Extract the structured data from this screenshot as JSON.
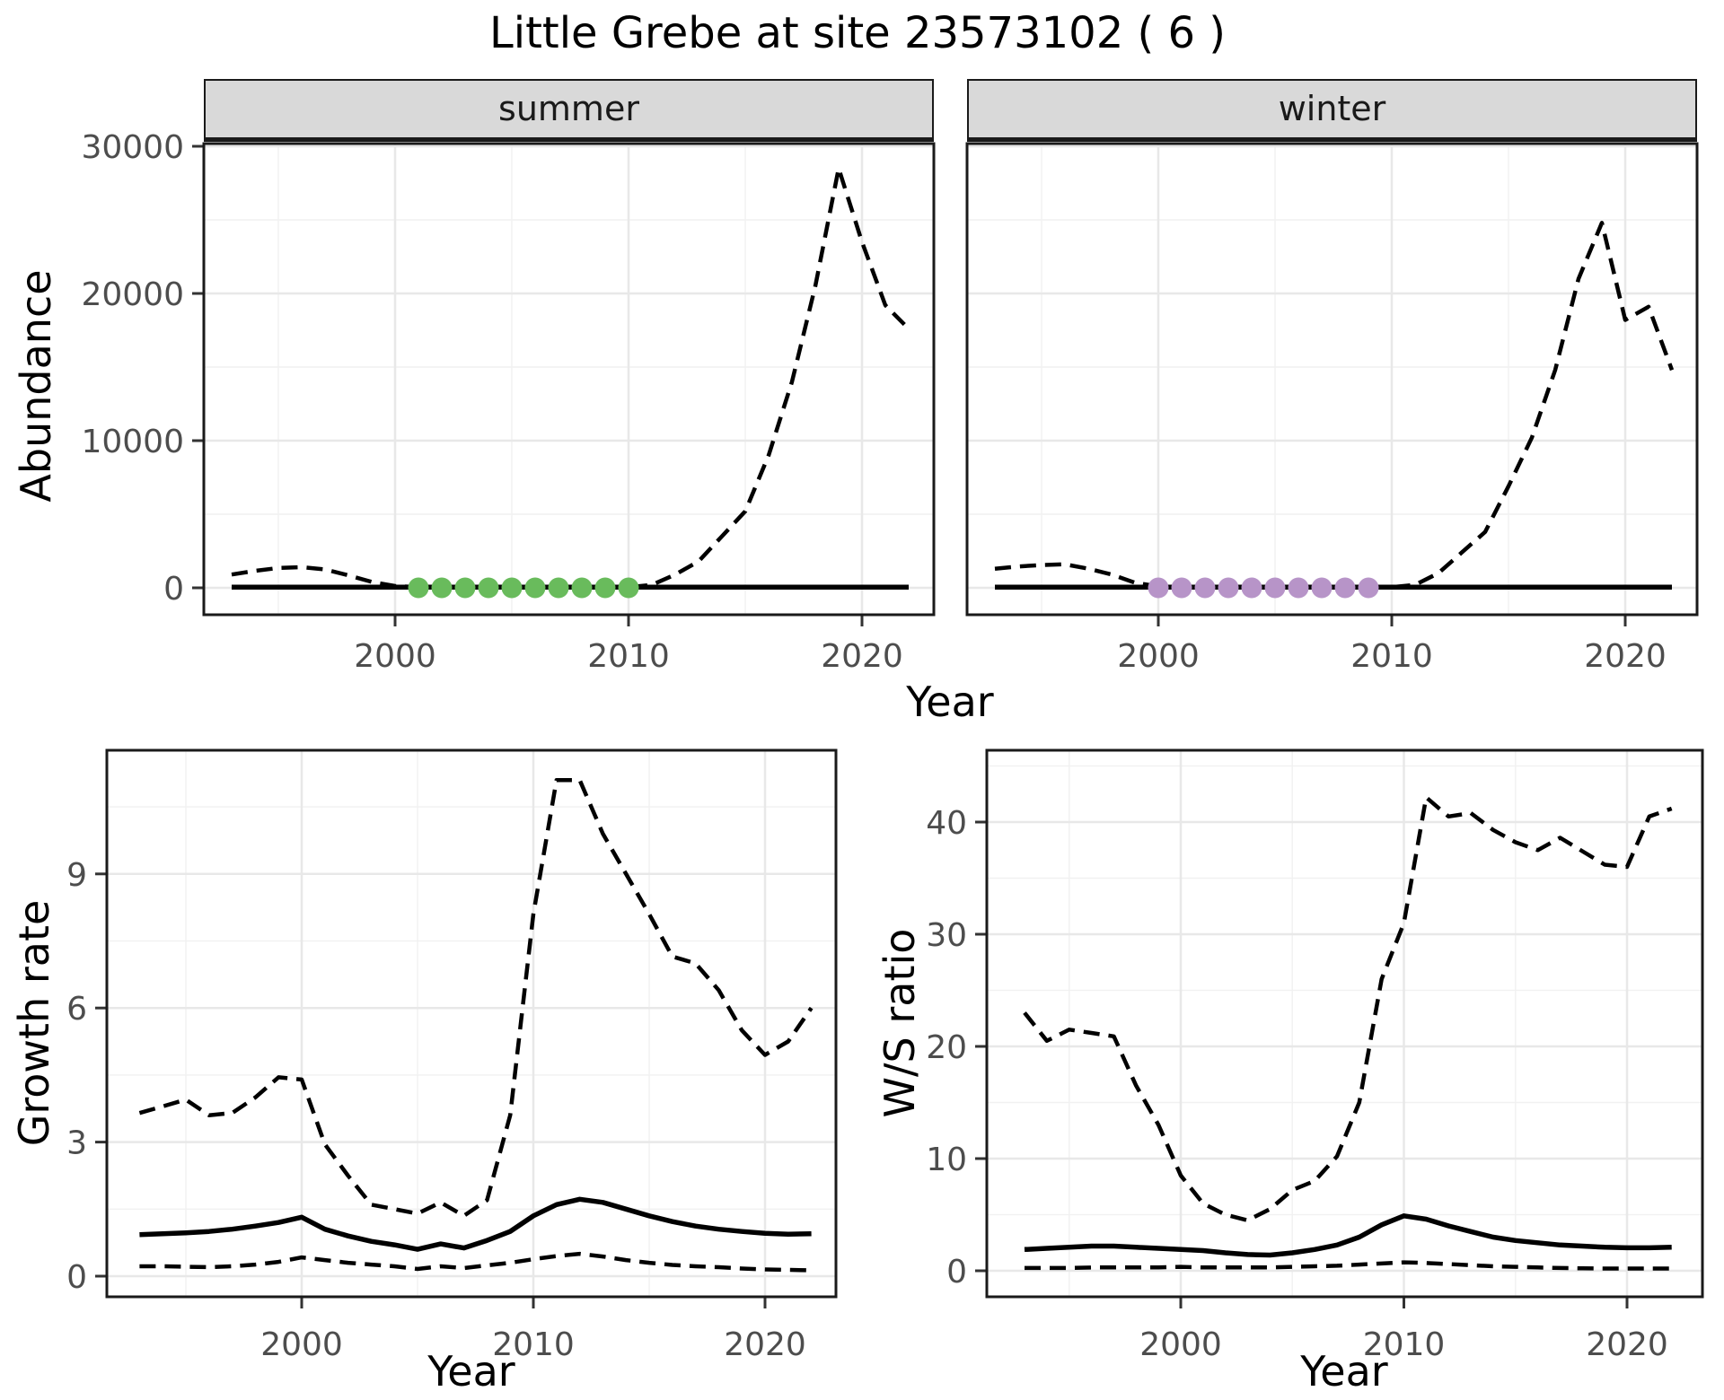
{
  "title": "Little Grebe at site 23573102 ( 6 )",
  "labels": {
    "y_top": "Abundance",
    "x": "Year",
    "facet_summer": "summer",
    "facet_winter": "winter",
    "y_growth": "Growth rate",
    "y_ws": "W/S ratio"
  },
  "colors": {
    "summer_points": "#69BB5C",
    "winter_points": "#B794C8",
    "line": "#000000",
    "grid_major": "#E8E8E8",
    "grid_minor": "#F1F1F1",
    "panel_border": "#1A1A1A",
    "strip_bg": "#D9D9D9",
    "axis_text": "#4D4D4D",
    "tick_mark": "#333333",
    "background": "#FFFFFF"
  },
  "chart_data": [
    {
      "id": "abundance-summer",
      "type": "line",
      "facet_label": "summer",
      "xlabel": "Year",
      "ylabel": "Abundance",
      "x": [
        1993,
        1994,
        1995,
        1996,
        1997,
        1998,
        1999,
        2000,
        2001,
        2002,
        2003,
        2004,
        2005,
        2006,
        2007,
        2008,
        2009,
        2010,
        2011,
        2012,
        2013,
        2014,
        2015,
        2016,
        2017,
        2018,
        2019,
        2020,
        2021,
        2022
      ],
      "xticks": [
        2000,
        2010,
        2020
      ],
      "yticks": [
        0,
        10000,
        20000,
        30000
      ],
      "ylim": [
        0,
        30000
      ],
      "grid": true,
      "legend": "none",
      "series": [
        {
          "name": "upper-credible-interval",
          "style": "dashed",
          "values": [
            900,
            1150,
            1350,
            1400,
            1250,
            850,
            400,
            120,
            40,
            30,
            30,
            30,
            30,
            30,
            30,
            30,
            30,
            40,
            200,
            900,
            1800,
            3500,
            5200,
            9000,
            14000,
            20500,
            28500,
            23500,
            19200,
            17600
          ]
        },
        {
          "name": "median",
          "style": "solid",
          "values": [
            40,
            40,
            40,
            40,
            40,
            40,
            40,
            40,
            40,
            40,
            40,
            40,
            40,
            40,
            40,
            40,
            40,
            40,
            40,
            40,
            40,
            40,
            40,
            40,
            40,
            40,
            40,
            40,
            40,
            40
          ]
        },
        {
          "name": "lower-credible-interval",
          "style": "dashed",
          "values": [
            10,
            10,
            10,
            10,
            10,
            10,
            10,
            10,
            10,
            10,
            10,
            10,
            10,
            10,
            10,
            10,
            10,
            10,
            10,
            10,
            10,
            10,
            10,
            10,
            10,
            10,
            10,
            10,
            10,
            10
          ]
        }
      ],
      "points": {
        "name": "observed-summer-counts",
        "color": "#69BB5C",
        "x": [
          2001,
          2002,
          2003,
          2004,
          2005,
          2006,
          2007,
          2008,
          2009,
          2010
        ],
        "y": [
          0,
          0,
          0,
          0,
          0,
          0,
          0,
          0,
          0,
          0
        ]
      }
    },
    {
      "id": "abundance-winter",
      "type": "line",
      "facet_label": "winter",
      "xlabel": "Year",
      "ylabel": "Abundance",
      "x": [
        1993,
        1994,
        1995,
        1996,
        1997,
        1998,
        1999,
        2000,
        2001,
        2002,
        2003,
        2004,
        2005,
        2006,
        2007,
        2008,
        2009,
        2010,
        2011,
        2012,
        2013,
        2014,
        2015,
        2016,
        2017,
        2018,
        2019,
        2020,
        2021,
        2022
      ],
      "xticks": [
        2000,
        2010,
        2020
      ],
      "yticks": [
        0,
        10000,
        20000,
        30000
      ],
      "ylim": [
        0,
        30000
      ],
      "grid": true,
      "legend": "none",
      "series": [
        {
          "name": "upper-credible-interval",
          "style": "dashed",
          "values": [
            1300,
            1450,
            1550,
            1600,
            1300,
            900,
            350,
            100,
            40,
            30,
            30,
            30,
            30,
            30,
            30,
            30,
            30,
            40,
            200,
            1000,
            2400,
            3800,
            6900,
            10200,
            14800,
            21000,
            24800,
            18200,
            19100,
            14800
          ]
        },
        {
          "name": "median",
          "style": "solid",
          "values": [
            40,
            40,
            40,
            40,
            40,
            40,
            40,
            40,
            40,
            40,
            40,
            40,
            40,
            40,
            40,
            40,
            40,
            40,
            40,
            40,
            40,
            40,
            40,
            40,
            40,
            40,
            40,
            40,
            40,
            40
          ]
        },
        {
          "name": "lower-credible-interval",
          "style": "dashed",
          "values": [
            10,
            10,
            10,
            10,
            10,
            10,
            10,
            10,
            10,
            10,
            10,
            10,
            10,
            10,
            10,
            10,
            10,
            10,
            10,
            10,
            10,
            10,
            10,
            10,
            10,
            10,
            10,
            10,
            10,
            10
          ]
        }
      ],
      "points": {
        "name": "observed-winter-counts",
        "color": "#B794C8",
        "x": [
          2000,
          2001,
          2002,
          2003,
          2004,
          2005,
          2006,
          2007,
          2008,
          2009
        ],
        "y": [
          0,
          0,
          0,
          0,
          0,
          0,
          0,
          0,
          0,
          0
        ]
      }
    },
    {
      "id": "growth-rate",
      "type": "line",
      "facet_label": "",
      "xlabel": "Year",
      "ylabel": "Growth rate",
      "x": [
        1993,
        1994,
        1995,
        1996,
        1997,
        1998,
        1999,
        2000,
        2001,
        2002,
        2003,
        2004,
        2005,
        2006,
        2007,
        2008,
        2009,
        2010,
        2011,
        2012,
        2013,
        2014,
        2015,
        2016,
        2017,
        2018,
        2019,
        2020,
        2021,
        2022
      ],
      "xticks": [
        2000,
        2010,
        2020
      ],
      "yticks": [
        0,
        3,
        6,
        9
      ],
      "ylim": [
        0,
        11.5
      ],
      "grid": true,
      "legend": "none",
      "series": [
        {
          "name": "upper-credible-interval",
          "style": "dashed",
          "values": [
            3.65,
            3.8,
            3.95,
            3.6,
            3.65,
            4.0,
            4.45,
            4.4,
            2.95,
            2.25,
            1.6,
            1.5,
            1.4,
            1.65,
            1.35,
            1.7,
            3.6,
            8.1,
            11.1,
            11.1,
            9.9,
            9.0,
            8.1,
            7.15,
            7.0,
            6.4,
            5.5,
            4.95,
            5.25,
            6.0
          ]
        },
        {
          "name": "median",
          "style": "solid",
          "values": [
            0.93,
            0.95,
            0.97,
            1.0,
            1.05,
            1.12,
            1.2,
            1.32,
            1.05,
            0.9,
            0.78,
            0.7,
            0.6,
            0.72,
            0.63,
            0.8,
            1.0,
            1.35,
            1.6,
            1.72,
            1.65,
            1.5,
            1.35,
            1.22,
            1.12,
            1.05,
            1.0,
            0.96,
            0.94,
            0.95
          ]
        },
        {
          "name": "lower-credible-interval",
          "style": "dashed",
          "values": [
            0.22,
            0.22,
            0.21,
            0.2,
            0.22,
            0.26,
            0.32,
            0.42,
            0.36,
            0.3,
            0.26,
            0.22,
            0.16,
            0.22,
            0.18,
            0.24,
            0.3,
            0.38,
            0.45,
            0.5,
            0.44,
            0.36,
            0.3,
            0.25,
            0.22,
            0.2,
            0.17,
            0.15,
            0.14,
            0.13
          ]
        }
      ],
      "points": null
    },
    {
      "id": "ws-ratio",
      "type": "line",
      "facet_label": "",
      "xlabel": "Year",
      "ylabel": "W/S ratio",
      "x": [
        1993,
        1994,
        1995,
        1996,
        1997,
        1998,
        1999,
        2000,
        2001,
        2002,
        2003,
        2004,
        2005,
        2006,
        2007,
        2008,
        2009,
        2010,
        2011,
        2012,
        2013,
        2014,
        2015,
        2016,
        2017,
        2018,
        2019,
        2020,
        2021,
        2022
      ],
      "xticks": [
        2000,
        2010,
        2020
      ],
      "yticks": [
        0,
        10,
        20,
        30,
        40
      ],
      "ylim": [
        0,
        43
      ],
      "grid": true,
      "legend": "none",
      "series": [
        {
          "name": "upper-credible-interval",
          "style": "dashed",
          "values": [
            23,
            20.5,
            21.5,
            21.2,
            20.9,
            16.5,
            13,
            8.5,
            6,
            5,
            4.5,
            5.5,
            7.2,
            8,
            10.2,
            15,
            26,
            31,
            42.2,
            40.5,
            40.8,
            39.3,
            38.2,
            37.5,
            38.6,
            37.4,
            36.2,
            36,
            40.5,
            41.2
          ]
        },
        {
          "name": "median",
          "style": "solid",
          "values": [
            1.9,
            2.0,
            2.1,
            2.2,
            2.2,
            2.1,
            2.0,
            1.9,
            1.8,
            1.6,
            1.45,
            1.4,
            1.6,
            1.9,
            2.3,
            3.0,
            4.1,
            4.9,
            4.6,
            4.0,
            3.5,
            3.0,
            2.7,
            2.5,
            2.3,
            2.2,
            2.1,
            2.05,
            2.05,
            2.1
          ]
        },
        {
          "name": "lower-credible-interval",
          "style": "dashed",
          "values": [
            0.25,
            0.25,
            0.25,
            0.3,
            0.3,
            0.3,
            0.3,
            0.35,
            0.3,
            0.3,
            0.3,
            0.3,
            0.35,
            0.4,
            0.45,
            0.55,
            0.65,
            0.75,
            0.7,
            0.6,
            0.5,
            0.4,
            0.35,
            0.3,
            0.25,
            0.22,
            0.2,
            0.2,
            0.2,
            0.2
          ]
        }
      ],
      "points": null
    }
  ]
}
